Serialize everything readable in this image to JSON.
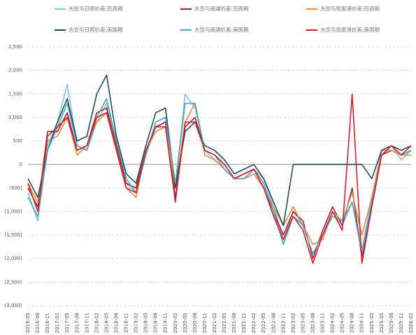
{
  "chart_data": {
    "type": "line",
    "categories": [
      "2016-05",
      "2016-08",
      "2016-11",
      "2017-02",
      "2017-05",
      "2017-08",
      "2017-11",
      "2018-02",
      "2018-05",
      "2018-08",
      "2018-11",
      "2019-02",
      "2019-05",
      "2019-08",
      "2019-11",
      "2020-02",
      "2020-05",
      "2020-08",
      "2020-11",
      "2021-02",
      "2021-05",
      "2021-08",
      "2021-11",
      "2022-02",
      "2022-05",
      "2022-08",
      "2022-11",
      "2023-02",
      "2023-05",
      "2023-08",
      "2023-11",
      "2024-02",
      "2024-05",
      "2024-08",
      "2024-11",
      "2025-02",
      "2025-05",
      "2025-08",
      "2025-11",
      "2026-02"
    ],
    "series": [
      {
        "name": "大豆与日照价差:巴西期",
        "color": "#7cc6d8",
        "values": [
          -600,
          -1200,
          400,
          900,
          1700,
          400,
          300,
          900,
          1300,
          400,
          -400,
          -600,
          200,
          800,
          900,
          -500,
          1500,
          1200,
          300,
          100,
          -100,
          -300,
          -300,
          -100,
          -300,
          -900,
          -1600,
          -1000,
          -1300,
          -1900,
          -1500,
          -1000,
          -1300,
          -800,
          -1800,
          -700,
          300,
          400,
          100,
          300
        ]
      },
      {
        "name": "大豆与南通价差:巴西期",
        "color": "#a8202c",
        "values": [
          -500,
          -900,
          700,
          700,
          1100,
          300,
          400,
          1100,
          1200,
          400,
          -400,
          -500,
          300,
          800,
          900,
          -700,
          800,
          1000,
          300,
          200,
          0,
          -300,
          -200,
          -100,
          -500,
          -1000,
          -1500,
          -1000,
          -1200,
          -2000,
          -1400,
          -900,
          -1300,
          -500,
          -2000,
          -900,
          200,
          300,
          200,
          300
        ]
      },
      {
        "name": "大豆与张家港价差:巴西期",
        "color": "#f0883c",
        "values": [
          -400,
          -800,
          500,
          600,
          1000,
          200,
          400,
          900,
          1100,
          300,
          -500,
          -700,
          300,
          700,
          800,
          -500,
          900,
          1300,
          200,
          100,
          -100,
          -300,
          -300,
          -200,
          -500,
          -900,
          -1300,
          -900,
          -1300,
          -1700,
          -1600,
          -1000,
          -1200,
          -600,
          -1500,
          -700,
          300,
          300,
          200,
          200
        ]
      },
      {
        "name": "大豆与日照价差:美国期",
        "color": "#1f4d5e",
        "values": [
          -300,
          -700,
          300,
          900,
          1400,
          500,
          600,
          1500,
          1900,
          600,
          -200,
          -400,
          400,
          1100,
          1200,
          -500,
          700,
          900,
          400,
          300,
          100,
          -200,
          -100,
          0,
          -300,
          -800,
          -1300,
          0,
          0,
          0,
          0,
          0,
          0,
          0,
          0,
          -300,
          300,
          400,
          300,
          400
        ]
      },
      {
        "name": "大豆与南通价差:美国期",
        "color": "#4aa5c2",
        "values": [
          -700,
          -1100,
          300,
          800,
          1300,
          400,
          300,
          1000,
          1400,
          500,
          -300,
          -600,
          200,
          900,
          1000,
          -400,
          1300,
          1300,
          300,
          200,
          -100,
          -300,
          -300,
          -100,
          -400,
          -1000,
          -1700,
          -1100,
          -1300,
          -1900,
          -1500,
          -1100,
          -1200,
          -800,
          -1900,
          -800,
          200,
          400,
          200,
          300
        ]
      },
      {
        "name": "大豆与张家港价差:美国期",
        "color": "#d61f2e",
        "values": [
          -400,
          -1000,
          600,
          800,
          1000,
          300,
          400,
          1000,
          1100,
          300,
          -500,
          -600,
          300,
          800,
          800,
          -800,
          900,
          900,
          300,
          200,
          0,
          -300,
          -200,
          -100,
          -500,
          -1100,
          -1600,
          -1100,
          -1400,
          -2100,
          -1500,
          -1000,
          -1400,
          1500,
          -2100,
          -900,
          200,
          400,
          200,
          400
        ]
      }
    ],
    "ylim": [
      -3000,
      2500
    ],
    "yticks": [
      {
        "value": -3000,
        "label": "(3,000)"
      },
      {
        "value": -2500,
        "label": "(2,500)"
      },
      {
        "value": -2000,
        "label": "(2,000)"
      },
      {
        "value": -1500,
        "label": "(1,500)"
      },
      {
        "value": -1000,
        "label": "(1,000)"
      },
      {
        "value": -500,
        "label": "(500)"
      },
      0,
      500,
      {
        "value": 1000,
        "label": "1,000"
      },
      {
        "value": 1500,
        "label": "1,500"
      },
      {
        "value": 2000,
        "label": "2,000"
      },
      {
        "value": 2500,
        "label": "2,500"
      }
    ],
    "grid": true
  }
}
